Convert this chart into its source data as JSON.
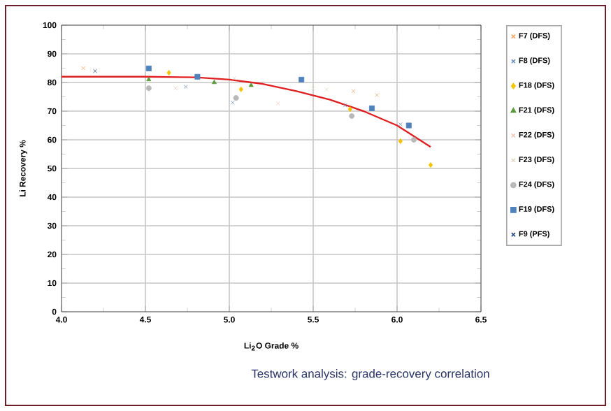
{
  "chart_data": {
    "type": "scatter",
    "title": "Testwork analysis: grade-recovery correlation",
    "xlabel": "Li$_{2}$O Grade %",
    "ylabel": "Li Recovery %",
    "xlim": [
      4.0,
      6.5
    ],
    "xticks": [
      {
        "value": 4.0,
        "label": "4.0"
      },
      {
        "value": 4.5,
        "label": "4.5"
      },
      {
        "value": 5.0,
        "label": "5.0"
      },
      {
        "value": 5.5,
        "label": "5.5"
      },
      {
        "value": 6.0,
        "label": "6.0"
      },
      {
        "value": 6.5,
        "label": "6.5"
      }
    ],
    "ylim": [
      0,
      100
    ],
    "yticks": [
      0,
      10,
      20,
      30,
      40,
      50,
      60,
      70,
      80,
      90,
      100
    ],
    "grid": true,
    "legend": "right",
    "series": [
      {
        "name": "F7 (DFS)",
        "color": "#f4a460",
        "marker": "cross",
        "x": [
          4.13,
          5.74,
          5.88
        ],
        "values": [
          85,
          77,
          75.6
        ]
      },
      {
        "name": "F8 (DFS)",
        "color": "#6f8fbf",
        "marker": "cross",
        "x": [
          4.74,
          5.02,
          5.69,
          6.02
        ],
        "values": [
          78.5,
          73,
          72,
          65.4
        ]
      },
      {
        "name": "F18 (DFS)",
        "color": "#f5c400",
        "marker": "diamond",
        "x": [
          4.64,
          5.07,
          5.72,
          6.02,
          6.2
        ],
        "values": [
          83.4,
          77.6,
          70.7,
          59.5,
          51.2
        ]
      },
      {
        "name": "F21 (DFS)",
        "color": "#5a9a3a",
        "marker": "triangle",
        "x": [
          4.52,
          4.91,
          5.13
        ],
        "values": [
          81,
          80,
          79
        ]
      },
      {
        "name": "F22 (DFS)",
        "color": "#f0c8b8",
        "marker": "cross",
        "x": [
          4.68,
          5.29
        ],
        "values": [
          78,
          72.7
        ]
      },
      {
        "name": "F23 (DFS)",
        "color": "#e0d8c8",
        "marker": "cross",
        "x": [
          5.03,
          5.5,
          5.58
        ],
        "values": [
          81.5,
          78,
          77.6
        ]
      },
      {
        "name": "F24 (DFS)",
        "color": "#b8b8b8",
        "marker": "circle",
        "x": [
          4.52,
          5.04,
          5.73,
          6.1
        ],
        "values": [
          78,
          74.6,
          68.3,
          60
        ]
      },
      {
        "name": "F19 (DFS)",
        "color": "#4f81bd",
        "marker": "square",
        "x": [
          4.52,
          4.81,
          5.43,
          5.85,
          6.07
        ],
        "values": [
          84.9,
          82,
          81,
          71,
          65
        ]
      },
      {
        "name": "F9 (PFS)",
        "color": "#1f3f7f",
        "marker": "cross",
        "x": [
          4.2
        ],
        "values": [
          84
        ]
      },
      {
        "type": "line",
        "color": "#e02020",
        "marker": "none",
        "x": [
          4.0,
          4.5,
          4.8,
          5.0,
          5.2,
          5.4,
          5.6,
          5.8,
          6.0,
          6.2
        ],
        "values": [
          82,
          82,
          81.8,
          81,
          79.5,
          77,
          74,
          70,
          65,
          57.5
        ]
      }
    ]
  }
}
